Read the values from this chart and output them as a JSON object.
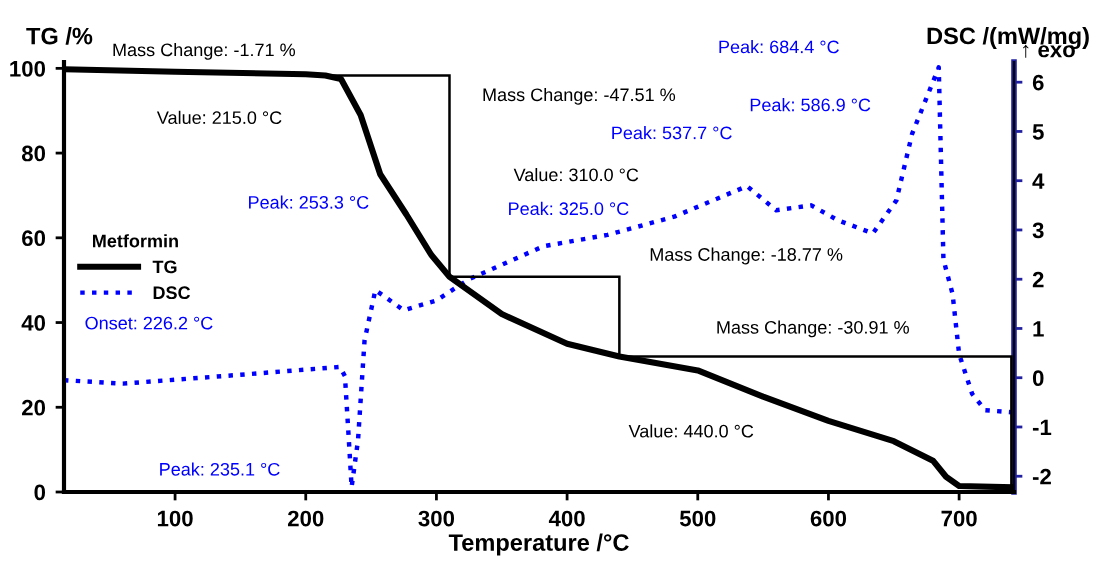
{
  "chart_data": {
    "type": "line",
    "xlabel": "Temperature /°C",
    "ylabel": "TG /%",
    "y2label": "DSC /(mW/mg)",
    "legend_title": "Metformin",
    "xlim": [
      15,
      742
    ],
    "xticks": [
      100,
      200,
      300,
      400,
      500,
      600,
      700
    ],
    "ylim": [
      0,
      101.5
    ],
    "yticks": [
      0,
      20,
      40,
      60,
      80,
      100
    ],
    "y2lim": [
      -2.32,
      6.41
    ],
    "y2ticks": [
      -2,
      -1,
      0,
      1,
      2,
      3,
      4,
      5,
      6
    ],
    "legend": "center left",
    "grid": false,
    "series": [
      {
        "name": "TG",
        "color": "#000000",
        "line_style": "solid",
        "x": [
          15,
          100,
          200,
          215,
          227,
          242,
          257,
          277,
          296,
          310,
          350,
          400,
          440,
          500,
          550,
          600,
          650,
          680,
          690,
          700,
          740
        ],
        "values": [
          99.8,
          99.2,
          98.6,
          98.3,
          97.5,
          89,
          75,
          65.5,
          56,
          50.8,
          42,
          35,
          32.0,
          28.7,
          22.5,
          16.8,
          12,
          7.4,
          3.6,
          1.4,
          1.1
        ]
      },
      {
        "name": "DSC",
        "color": "#0000ff",
        "line_style": "dotted",
        "axis": "y2",
        "x": [
          15,
          60,
          150,
          226.2,
          230,
          233,
          235.1,
          240,
          245,
          253.3,
          275,
          300,
          325,
          382,
          431,
          482,
          537.7,
          560,
          586.9,
          607,
          634,
          652,
          664,
          684.4,
          688,
          695,
          700,
          710,
          720,
          740
        ],
        "values": [
          -0.05,
          -0.12,
          0.06,
          0.22,
          0.03,
          -1.27,
          -2.22,
          -1.27,
          0.76,
          1.78,
          1.37,
          1.57,
          2.0,
          2.67,
          2.9,
          3.27,
          3.89,
          3.4,
          3.5,
          3.2,
          2.93,
          3.6,
          4.95,
          6.3,
          2.4,
          1.7,
          0.48,
          -0.33,
          -0.66,
          -0.7
        ]
      },
      {
        "color": "#000000",
        "line_style": "solid",
        "x": [
          215,
          310,
          null,
          310,
          310,
          null,
          310,
          440,
          null,
          440,
          440,
          null,
          440,
          740,
          null,
          740,
          740
        ],
        "values": [
          98.3,
          98.3,
          null,
          98.3,
          50.8,
          null,
          50.8,
          50.8,
          null,
          50.8,
          32.0,
          null,
          32.0,
          32.0,
          null,
          32.0,
          1.1
        ]
      }
    ],
    "annotations": [
      "Mass Change: -1.71 %",
      "Value: 215.0 °C",
      "Mass Change: -47.51 %",
      "Value: 310.0 °C",
      "Peak: 325.0 °C",
      "Peak: 253.3 °C",
      "Peak: 537.7 °C",
      "Peak: 586.9 °C",
      "Peak: 684.4 °C",
      "Mass Change: -18.77 %",
      "Mass Change: -30.91 %",
      "Value: 440.0 °C",
      "Onset: 226.2 °C",
      "Peak: 235.1 °C",
      "↑ exo"
    ]
  }
}
